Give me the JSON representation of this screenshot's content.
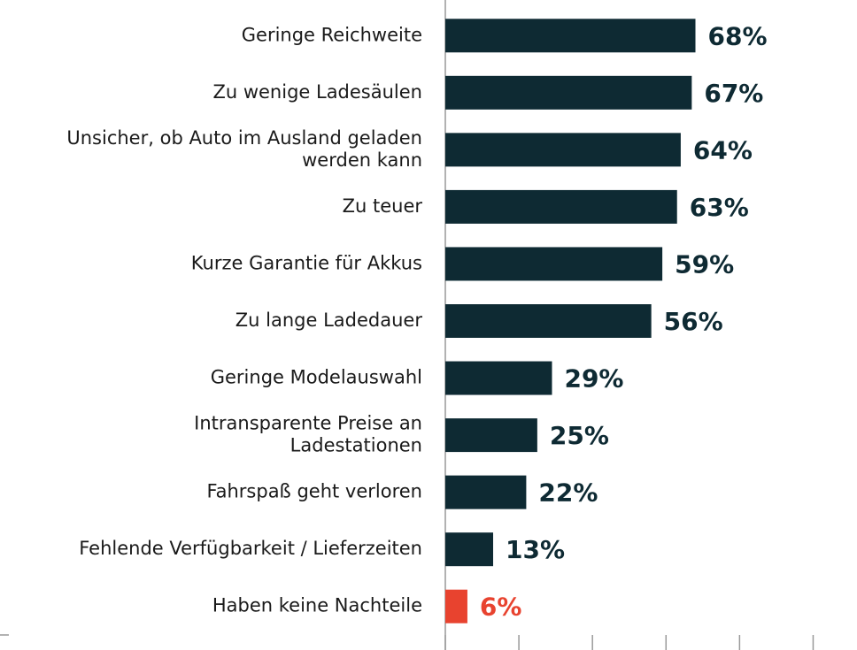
{
  "chart_data": {
    "type": "hbar",
    "categories": [
      "Geringe Reichweite",
      "Zu wenige Ladesäulen",
      "Unsicher, ob Auto im Ausland geladen\nwerden kann",
      "Zu teuer",
      "Kurze Garantie für Akkus",
      "Zu lange Ladedauer",
      "Geringe Modelauswahl",
      "Intransparente Preise an\nLadestationen",
      "Fahrspaß geht verloren",
      "Fehlende Verfügbarkeit / Lieferzeiten",
      "Haben keine Nachteile"
    ],
    "values": [
      68,
      67,
      64,
      63,
      59,
      56,
      29,
      25,
      22,
      13,
      6
    ],
    "value_labels": [
      "68%",
      "67%",
      "64%",
      "63%",
      "59%",
      "56%",
      "29%",
      "25%",
      "22%",
      "13%",
      "6%"
    ],
    "colors": [
      "#0e2a33",
      "#0e2a33",
      "#0e2a33",
      "#0e2a33",
      "#0e2a33",
      "#0e2a33",
      "#0e2a33",
      "#0e2a33",
      "#0e2a33",
      "#0e2a33",
      "#e8432f"
    ],
    "xlim": [
      0,
      110
    ],
    "xticks": [
      0,
      20,
      40,
      60,
      80,
      100
    ]
  }
}
